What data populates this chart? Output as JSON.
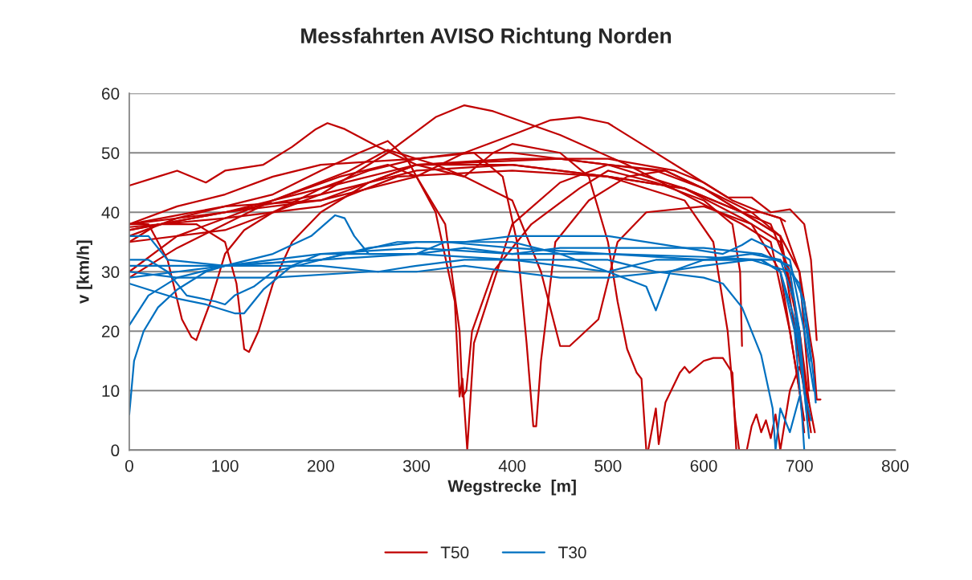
{
  "chart_data": {
    "type": "line",
    "title": "Messfahrten AVISO Richtung Norden",
    "xlabel": "Wegstrecke  [m]",
    "ylabel": "v [km/h]",
    "xlim": [
      0,
      800
    ],
    "xticks": [
      0,
      100,
      200,
      300,
      400,
      500,
      600,
      700,
      800
    ],
    "ylim": [
      0,
      60
    ],
    "yticks": [
      0,
      10,
      20,
      30,
      40,
      50,
      60
    ],
    "grid": "y",
    "legend": "bottom",
    "marker": "none",
    "line_style": "solid",
    "series": [
      {
        "name": "T50",
        "color": "#c00000",
        "x": [
          0,
          100,
          200,
          270,
          320,
          350,
          380,
          450,
          520,
          580,
          640,
          670,
          690,
          705
        ],
        "values": [
          37,
          40,
          43,
          50,
          56,
          58,
          57,
          53,
          48,
          43,
          38,
          35,
          20,
          5
        ]
      },
      {
        "color": "#c00000",
        "x": [
          0,
          30,
          50,
          80,
          100,
          140,
          170,
          195,
          207,
          225,
          260,
          300,
          350,
          400,
          430,
          450,
          460,
          490,
          510,
          540,
          600,
          650,
          680,
          700,
          705
        ],
        "values": [
          44.5,
          46,
          47,
          45,
          47,
          48,
          51,
          54,
          55,
          54,
          51,
          48,
          46,
          42,
          30,
          17.5,
          17.5,
          22,
          35,
          40,
          41,
          38,
          30,
          10,
          3
        ]
      },
      {
        "color": "#c00000",
        "x": [
          0,
          100,
          200,
          300,
          350,
          400,
          440,
          470,
          500,
          540,
          580,
          630,
          660,
          680,
          700,
          710
        ],
        "values": [
          38,
          40,
          42,
          46,
          50,
          53,
          55.5,
          56,
          55,
          51,
          47,
          42,
          40,
          39,
          30,
          10
        ]
      },
      {
        "color": "#c00000",
        "x": [
          0,
          20,
          40,
          55,
          65,
          70,
          85,
          100,
          120,
          150,
          200,
          250,
          300,
          350,
          400,
          500,
          580,
          640,
          680,
          700,
          710
        ],
        "values": [
          38,
          38,
          32,
          22,
          19,
          18.5,
          25,
          33,
          37,
          40,
          44,
          47,
          49,
          50,
          50,
          48,
          44,
          40,
          36,
          20,
          5
        ]
      },
      {
        "color": "#c00000",
        "x": [
          0,
          30,
          70,
          100,
          112,
          120,
          125,
          135,
          150,
          170,
          200,
          250,
          300,
          400,
          500,
          580,
          640,
          680,
          700,
          710
        ],
        "values": [
          35,
          38,
          38,
          35,
          28,
          17,
          16.5,
          20,
          28,
          35,
          40,
          45,
          48,
          48,
          46,
          44,
          39,
          35,
          20,
          8
        ]
      },
      {
        "color": "#c00000",
        "x": [
          0,
          50,
          100,
          150,
          200,
          240,
          270,
          290,
          320,
          340,
          345,
          348,
          353,
          360,
          380,
          400,
          450,
          500,
          560,
          600,
          650,
          680,
          700,
          712
        ],
        "values": [
          36,
          39,
          41,
          43,
          47,
          50,
          52,
          49,
          40,
          25,
          9,
          12,
          0,
          18,
          28,
          38,
          45,
          48,
          47,
          44,
          40,
          36,
          15,
          3
        ]
      },
      {
        "color": "#c00000",
        "x": [
          0,
          50,
          100,
          150,
          200,
          300,
          360,
          390,
          405,
          415,
          422,
          425,
          430,
          445,
          480,
          520,
          560,
          600,
          640,
          670,
          690,
          705
        ],
        "values": [
          38,
          41,
          43,
          46,
          48,
          49,
          50,
          46,
          35,
          18,
          4,
          4,
          15,
          35,
          42,
          46,
          47,
          44,
          40,
          38,
          30,
          12
        ]
      },
      {
        "color": "#c00000",
        "x": [
          0,
          50,
          150,
          230,
          270,
          320,
          350,
          380,
          400,
          450,
          480,
          500,
          510,
          520,
          530,
          535,
          540,
          542,
          550,
          553,
          560,
          575,
          580,
          585,
          600,
          610,
          620,
          630,
          634
        ],
        "values": [
          30,
          36,
          42,
          47,
          50.5,
          48,
          46,
          50,
          51.5,
          50,
          46,
          35,
          25,
          17,
          13,
          12,
          0,
          0,
          7,
          1,
          8,
          13,
          14,
          13,
          15,
          15.5,
          15.5,
          13,
          0
        ]
      },
      {
        "color": "#c00000",
        "x": [
          0,
          50,
          100,
          150,
          220,
          270,
          300,
          330,
          345,
          348,
          352,
          358,
          380,
          420,
          470,
          500,
          550,
          600,
          630,
          638,
          640
        ],
        "values": [
          29,
          34,
          38,
          42,
          46,
          48,
          46,
          38,
          20,
          9,
          10,
          20,
          30,
          38,
          44,
          47,
          45,
          42,
          38,
          30,
          17.5
        ]
      },
      {
        "color": "#c00000",
        "x": [
          0,
          100,
          200,
          300,
          400,
          500,
          580,
          610,
          625,
          633,
          637,
          645,
          650,
          655,
          660,
          665,
          670,
          675,
          680,
          690,
          700,
          710,
          716
        ],
        "values": [
          35,
          37,
          43,
          47,
          48,
          46,
          42,
          35,
          20,
          5,
          0,
          0,
          4,
          6,
          3,
          5,
          2,
          6,
          0,
          10,
          14,
          8,
          3
        ]
      },
      {
        "color": "#c00000",
        "x": [
          0,
          100,
          200,
          250,
          300,
          400,
          500,
          570,
          600,
          625,
          650,
          670,
          690,
          705,
          712,
          718
        ],
        "values": [
          38,
          41,
          42,
          45,
          48,
          49,
          49,
          47,
          45,
          42.5,
          42.5,
          40,
          40.5,
          38,
          32,
          18.5
        ]
      },
      {
        "color": "#c00000",
        "x": [
          0,
          100,
          200,
          280,
          400,
          500,
          580,
          640,
          680,
          700,
          715,
          718,
          722
        ],
        "values": [
          37.5,
          39,
          41,
          46,
          47,
          46,
          44,
          40,
          36,
          30,
          15,
          8.5,
          8.5
        ]
      },
      {
        "color": "#c00000",
        "x": [
          0,
          100,
          200,
          300,
          450,
          550,
          600,
          640,
          660,
          680,
          685
        ],
        "values": [
          37,
          40,
          44,
          48,
          49,
          47,
          44,
          40,
          40,
          39,
          38.5
        ]
      },
      {
        "name": "T30",
        "color": "#0070c0",
        "x": [
          0,
          5,
          15,
          30,
          50,
          80,
          100,
          150,
          200,
          300,
          400,
          500,
          600,
          660,
          680,
          695,
          705,
          710
        ],
        "values": [
          6,
          15,
          20,
          24,
          27,
          30,
          31,
          32,
          33,
          34,
          33,
          33,
          32.5,
          32,
          30,
          22,
          10,
          2
        ]
      },
      {
        "color": "#0070c0",
        "x": [
          0,
          20,
          50,
          100,
          150,
          190,
          215,
          225,
          235,
          250,
          300,
          330,
          400,
          500,
          600,
          660,
          680,
          695,
          703,
          705
        ],
        "values": [
          21,
          26,
          29,
          31,
          33,
          36,
          39.5,
          39,
          36,
          33,
          33,
          35,
          34,
          33,
          32,
          32,
          30,
          20,
          5,
          0
        ]
      },
      {
        "color": "#0070c0",
        "x": [
          0,
          20,
          40,
          60,
          90,
          100,
          110,
          130,
          150,
          200,
          250,
          300,
          400,
          450,
          500,
          540,
          550,
          565,
          600,
          650,
          680,
          695,
          705,
          712
        ],
        "values": [
          32,
          32,
          30,
          26,
          25,
          24.5,
          26,
          27.5,
          30,
          32,
          34,
          35,
          35,
          33,
          30,
          27.5,
          23.5,
          30,
          32,
          33,
          32,
          25,
          10,
          5
        ]
      },
      {
        "color": "#0070c0",
        "x": [
          0,
          20,
          50,
          80,
          110,
          120,
          140,
          170,
          200,
          300,
          400,
          500,
          550,
          600,
          620,
          640,
          660,
          672,
          675,
          680,
          690,
          700
        ],
        "values": [
          28,
          27,
          25.5,
          24.5,
          23,
          23,
          27,
          31,
          33,
          33,
          32,
          32,
          30,
          29,
          28,
          24,
          16,
          7,
          0,
          7,
          3,
          9
        ]
      },
      {
        "color": "#0070c0",
        "x": [
          0,
          20,
          40,
          100,
          200,
          280,
          350,
          400,
          500,
          580,
          620,
          640,
          650,
          670,
          690,
          705,
          715
        ],
        "values": [
          36,
          36,
          32,
          31,
          32,
          35,
          35,
          36,
          36,
          34,
          33,
          34.5,
          35.5,
          34,
          32,
          20,
          10
        ]
      },
      {
        "color": "#0070c0",
        "x": [
          0,
          50,
          150,
          250,
          300,
          350,
          400,
          450,
          500,
          560,
          600,
          650,
          680,
          700,
          712
        ],
        "values": [
          30,
          29,
          29,
          30,
          30,
          31,
          30,
          29,
          29,
          30,
          31,
          32,
          32,
          28,
          15
        ]
      },
      {
        "color": "#0070c0",
        "x": [
          0,
          50,
          100,
          200,
          300,
          350,
          400,
          450,
          500,
          600,
          660,
          690,
          705,
          715,
          717
        ],
        "values": [
          29,
          30,
          31,
          32,
          33,
          34,
          33,
          34,
          34,
          34,
          33,
          31,
          25,
          12,
          8
        ]
      },
      {
        "color": "#0070c0",
        "x": [
          0,
          100,
          200,
          260,
          300,
          350,
          400,
          450,
          500,
          550,
          650,
          690,
          700,
          708
        ],
        "values": [
          31,
          31,
          31,
          30,
          31,
          32,
          32,
          31,
          30,
          32,
          32,
          30,
          20,
          5
        ]
      }
    ]
  }
}
